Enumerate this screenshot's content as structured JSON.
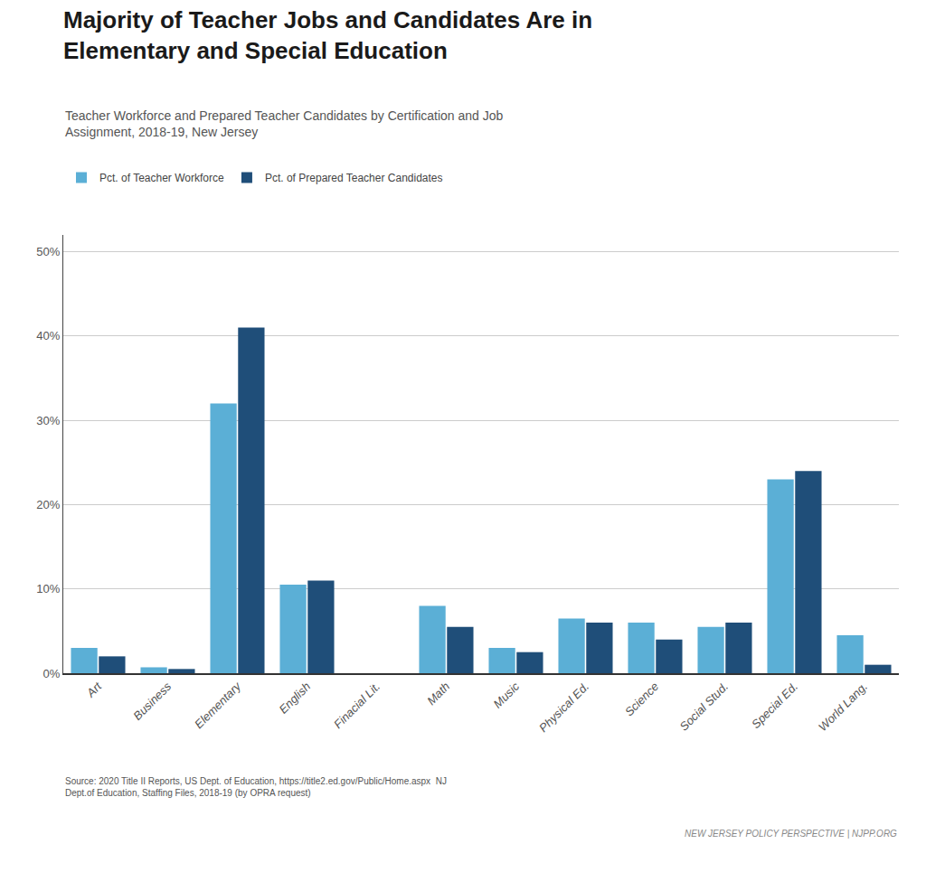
{
  "chart_data": {
    "type": "bar",
    "title": "Majority of Teacher Jobs and Candidates Are in\nElementary and Special Education",
    "subtitle": "Teacher Workforce and Prepared Teacher Candidates by Certification and Job\nAssignment, 2018-19, New Jersey",
    "categories": [
      "Art",
      "Business",
      "Elementary",
      "English",
      "Finacial Lit.",
      "Math",
      "Music",
      "Physical Ed.",
      "Science",
      "Social Stud.",
      "Special Ed.",
      "World Lang."
    ],
    "series": [
      {
        "name": "Pct. of Teacher Workforce",
        "color": "#5BAFD6",
        "values": [
          3.0,
          0.7,
          32.0,
          10.5,
          0.0,
          8.0,
          3.0,
          6.5,
          6.0,
          5.5,
          23.0,
          4.5
        ]
      },
      {
        "name": "Pct. of Prepared Teacher Candidates",
        "color": "#1F4E79",
        "values": [
          2.0,
          0.5,
          41.0,
          11.0,
          0.0,
          5.5,
          2.5,
          6.0,
          4.0,
          6.0,
          24.0,
          1.0
        ]
      }
    ],
    "ylim": [
      0,
      52
    ],
    "yticks": [
      {
        "value": 0,
        "label": "0%"
      },
      {
        "value": 10,
        "label": "10%"
      },
      {
        "value": 20,
        "label": "20%"
      },
      {
        "value": 30,
        "label": "30%"
      },
      {
        "value": 40,
        "label": "40%"
      },
      {
        "value": 50,
        "label": "50%"
      }
    ],
    "grid": true,
    "legend": "top",
    "annotations": [
      "Source: 2020 Title II Reports, US Dept. of Education, https://title2.ed.gov/Public/Home.aspx  NJ\nDept.of Education, Staffing Files, 2018-19 (by OPRA request)",
      "NEW JERSEY POLICY PERSPECTIVE | NJPP.ORG"
    ]
  }
}
